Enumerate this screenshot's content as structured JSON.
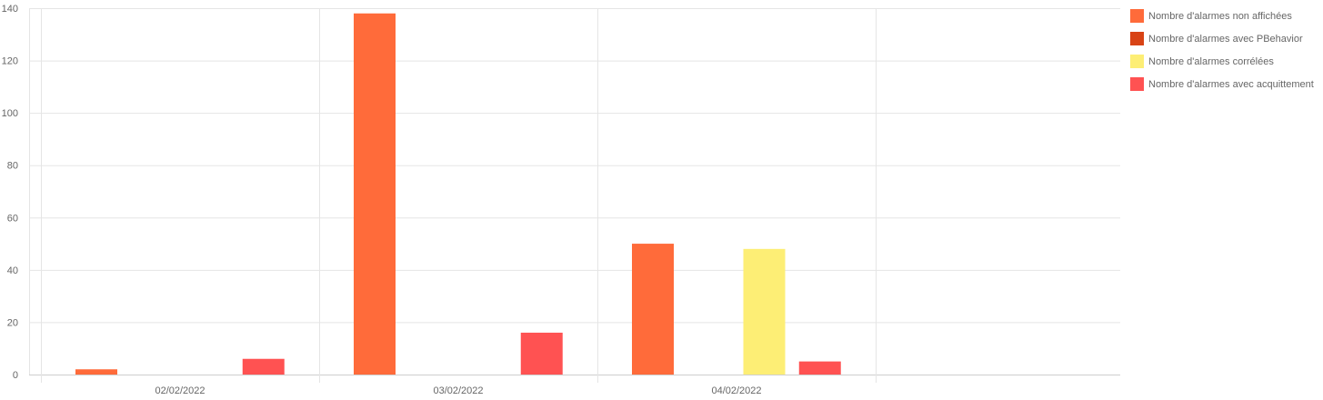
{
  "chart_data": {
    "type": "bar",
    "categories": [
      "02/02/2022",
      "03/02/2022",
      "04/02/2022",
      ""
    ],
    "series": [
      {
        "name": "Nombre d'alarmes non affichées",
        "color": "#ff6b3a",
        "values": [
          2,
          138,
          50,
          0
        ]
      },
      {
        "name": "Nombre d'alarmes avec PBehavior",
        "color": "#d84315",
        "values": [
          0,
          0,
          0,
          0
        ]
      },
      {
        "name": "Nombre d'alarmes corrélées",
        "color": "#fdee75",
        "values": [
          0,
          0,
          48,
          0
        ]
      },
      {
        "name": "Nombre d'alarmes avec acquittement",
        "color": "#ff5252",
        "values": [
          6,
          16,
          5,
          0
        ]
      }
    ],
    "ylim": [
      0,
      140
    ],
    "yticks": [
      0,
      20,
      40,
      60,
      80,
      100,
      120,
      140
    ],
    "grid": true,
    "legend_position": "right",
    "title": "",
    "xlabel": "",
    "ylabel": ""
  }
}
